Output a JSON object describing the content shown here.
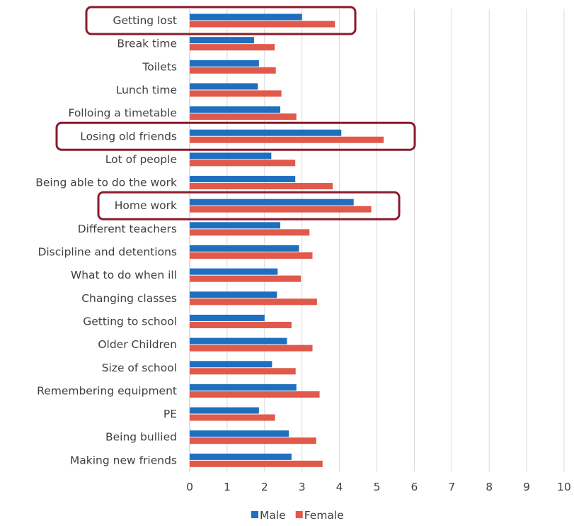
{
  "chart_data": {
    "type": "bar",
    "orientation": "horizontal",
    "categories": [
      "Getting lost",
      "Break time",
      "Toilets",
      "Lunch time",
      "Folloing a timetable",
      "Losing old friends",
      "Lot of people",
      "Being able to do the work",
      "Home work",
      "Different teachers",
      "Discipline and detentions",
      "What to do when ill",
      "Changing classes",
      "Getting to school",
      "Older Children",
      "Size of school",
      "Remembering equipment",
      "PE",
      "Being bullied",
      "Making new friends"
    ],
    "series": [
      {
        "name": "Male",
        "color": "#1f6fbf",
        "values": [
          3.0,
          1.72,
          1.85,
          1.82,
          2.42,
          4.05,
          2.18,
          2.82,
          4.38,
          2.42,
          2.92,
          2.35,
          2.33,
          2.0,
          2.6,
          2.2,
          2.85,
          1.85,
          2.65,
          2.72
        ]
      },
      {
        "name": "Female",
        "color": "#e1594a",
        "values": [
          3.88,
          2.27,
          2.3,
          2.45,
          2.85,
          5.18,
          2.82,
          3.82,
          4.85,
          3.2,
          3.28,
          2.97,
          3.4,
          2.72,
          3.28,
          2.83,
          3.47,
          2.28,
          3.38,
          3.55
        ]
      }
    ],
    "xlim": [
      0,
      10
    ],
    "x_ticks": [
      "0",
      "1",
      "2",
      "3",
      "4",
      "5",
      "6",
      "7",
      "8",
      "9",
      "10"
    ],
    "grid": true,
    "legend_position": "bottom",
    "highlighted_categories": [
      "Getting lost",
      "Losing old friends",
      "Home work"
    ],
    "highlight_color": "#8b1a2b",
    "title": "",
    "xlabel": "",
    "ylabel": ""
  }
}
